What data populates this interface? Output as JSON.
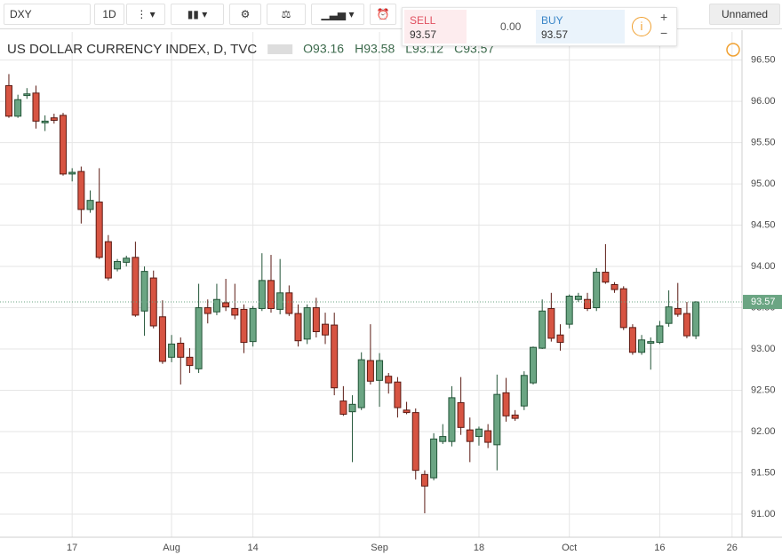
{
  "toolbar": {
    "symbol": "DXY",
    "interval": "1D",
    "layout_name": "Unnamed"
  },
  "trade": {
    "sell_label": "SELL",
    "sell_price": "93.57",
    "spread": "0.00",
    "buy_label": "BUY",
    "buy_price": "93.57"
  },
  "chart_data": {
    "type": "candlestick",
    "title": "US DOLLAR CURRENCY INDEX, D, TVC",
    "legend_values": [
      "O93.16",
      "H93.58",
      "L93.12",
      "C93.57"
    ],
    "categories": [
      null,
      null,
      null,
      null,
      null,
      null,
      null,
      null,
      null,
      null,
      null,
      null,
      null,
      null,
      null,
      null,
      null,
      null,
      null,
      null,
      null,
      null,
      null,
      null,
      null,
      null,
      null,
      null,
      null,
      null,
      null,
      null,
      null,
      null,
      null,
      null,
      null,
      null,
      null,
      null,
      null,
      null,
      null,
      null,
      null,
      null,
      null,
      null,
      null,
      null,
      null,
      null,
      null,
      null,
      null,
      null,
      null,
      null,
      null,
      null,
      null,
      null,
      null,
      null,
      null,
      null,
      null,
      null,
      null,
      null,
      null,
      null,
      null,
      null,
      null,
      null,
      null
    ],
    "open": [
      96.19,
      95.82,
      96.07,
      96.1,
      95.74,
      95.8,
      95.83,
      95.12,
      95.15,
      94.69,
      94.78,
      94.3,
      93.97,
      94.05,
      94.11,
      93.46,
      93.86,
      93.39,
      92.9,
      93.07,
      92.9,
      92.76,
      93.5,
      93.45,
      93.56,
      93.49,
      93.48,
      93.09,
      93.49,
      93.83,
      93.48,
      93.68,
      93.43,
      93.12,
      93.5,
      93.3,
      93.29,
      92.37,
      92.24,
      92.29,
      92.86,
      92.62,
      92.67,
      92.6,
      92.26,
      92.23,
      91.48,
      91.44,
      91.88,
      91.88,
      92.35,
      92.02,
      91.94,
      92.01,
      91.84,
      92.47,
      92.2,
      92.31,
      92.59,
      93.01,
      93.49,
      93.17,
      93.3,
      93.6,
      93.6,
      93.5,
      93.93,
      93.78,
      93.73,
      93.26,
      92.96,
      93.07,
      93.08,
      93.31,
      93.49,
      93.43,
      93.16
    ],
    "high": [
      96.33,
      96.08,
      96.16,
      96.19,
      95.83,
      95.85,
      95.86,
      95.19,
      95.21,
      94.92,
      95.19,
      94.38,
      94.09,
      94.13,
      94.3,
      94.0,
      93.95,
      93.59,
      93.17,
      93.14,
      93.01,
      93.79,
      93.6,
      93.79,
      93.85,
      93.79,
      93.54,
      93.52,
      94.16,
      94.14,
      94.09,
      93.77,
      93.54,
      93.54,
      93.62,
      93.44,
      93.44,
      92.55,
      92.44,
      92.96,
      93.3,
      92.95,
      92.71,
      92.66,
      92.36,
      92.28,
      91.53,
      91.98,
      92.09,
      92.55,
      92.66,
      92.17,
      92.06,
      92.09,
      92.69,
      92.65,
      92.26,
      92.73,
      93.03,
      93.6,
      93.68,
      93.3,
      93.66,
      93.68,
      93.68,
      93.98,
      94.27,
      93.81,
      93.76,
      93.3,
      93.17,
      93.14,
      93.34,
      93.71,
      93.8,
      93.57,
      93.58
    ],
    "low": [
      95.8,
      95.8,
      96.03,
      95.67,
      95.64,
      95.73,
      95.1,
      95.03,
      94.52,
      94.65,
      94.09,
      93.83,
      93.94,
      94.0,
      93.39,
      93.16,
      93.25,
      92.82,
      92.84,
      92.57,
      92.71,
      92.71,
      93.31,
      93.41,
      93.46,
      93.36,
      92.95,
      93.03,
      93.46,
      93.44,
      93.42,
      93.4,
      93.03,
      93.06,
      93.14,
      93.06,
      92.44,
      92.19,
      91.63,
      92.26,
      92.57,
      92.3,
      92.46,
      92.17,
      92.21,
      91.42,
      91.01,
      91.41,
      91.85,
      91.82,
      91.96,
      91.63,
      91.83,
      91.8,
      91.53,
      92.12,
      92.13,
      92.26,
      92.57,
      93.0,
      93.09,
      92.98,
      93.25,
      93.57,
      93.46,
      93.46,
      93.79,
      93.68,
      93.23,
      92.93,
      92.93,
      92.75,
      93.06,
      93.27,
      93.39,
      93.13,
      93.12
    ],
    "close": [
      95.82,
      96.02,
      96.09,
      95.76,
      95.76,
      95.77,
      95.12,
      95.14,
      94.69,
      94.8,
      94.11,
      93.86,
      94.06,
      94.1,
      93.41,
      93.94,
      93.28,
      92.85,
      93.06,
      92.9,
      92.8,
      93.5,
      93.43,
      93.6,
      93.51,
      93.41,
      93.08,
      93.49,
      93.83,
      93.49,
      93.68,
      93.43,
      93.1,
      93.5,
      93.21,
      93.17,
      92.53,
      92.21,
      92.33,
      92.87,
      92.61,
      92.86,
      92.59,
      92.29,
      92.23,
      91.53,
      91.34,
      91.91,
      91.94,
      92.41,
      92.05,
      91.88,
      92.03,
      91.87,
      92.45,
      92.19,
      92.16,
      92.68,
      93.02,
      93.46,
      93.13,
      93.08,
      93.64,
      93.64,
      93.49,
      93.93,
      93.81,
      93.72,
      93.26,
      92.96,
      93.11,
      93.09,
      93.28,
      93.51,
      93.42,
      93.16,
      93.57
    ],
    "up_color": "#6ba583",
    "up_border": "#225437",
    "down_color": "#d75442",
    "down_border": "#5b1a13",
    "last_price": 93.57,
    "last_price_color": "#6ba583",
    "ylim": [
      90.72,
      96.84
    ],
    "xlim": [
      -0.98,
      81.1
    ],
    "yticks": [
      {
        "value": 91,
        "label": "91.00"
      },
      {
        "value": 91.5,
        "label": "91.50"
      },
      {
        "value": 92,
        "label": "92.00"
      },
      {
        "value": 92.5,
        "label": "92.50"
      },
      {
        "value": 93,
        "label": "93.00"
      },
      {
        "value": 93.5,
        "label": "93.50"
      },
      {
        "value": 94,
        "label": "94.00"
      },
      {
        "value": 94.5,
        "label": "94.50"
      },
      {
        "value": 95,
        "label": "95.00"
      },
      {
        "value": 95.5,
        "label": "95.50"
      },
      {
        "value": 96,
        "label": "96.00"
      },
      {
        "value": 96.5,
        "label": "96.50"
      }
    ],
    "xticks": [
      {
        "value": 7,
        "label": "17"
      },
      {
        "value": 18,
        "label": "Aug"
      },
      {
        "value": 27,
        "label": "14"
      },
      {
        "value": 41,
        "label": "Sep"
      },
      {
        "value": 52,
        "label": "18"
      },
      {
        "value": 62,
        "label": "Oct"
      },
      {
        "value": 72,
        "label": "16"
      },
      {
        "value": 80,
        "label": "26"
      }
    ],
    "grid": true
  }
}
